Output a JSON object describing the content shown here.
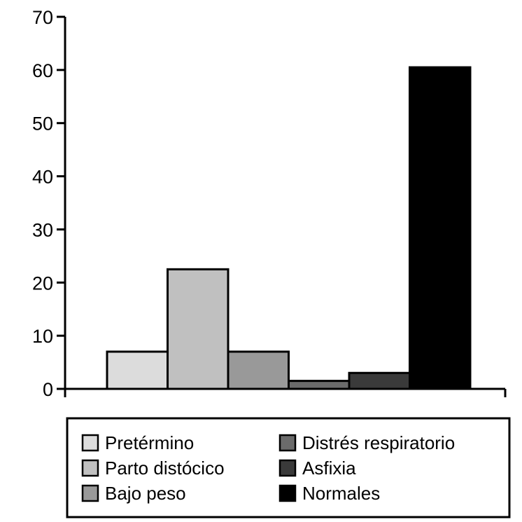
{
  "chart_data": {
    "type": "bar",
    "title": "",
    "xlabel": "",
    "ylabel": "",
    "ylim": [
      0,
      70
    ],
    "yticks": [
      "0",
      "10",
      "20",
      "30",
      "40",
      "50",
      "60",
      "70"
    ],
    "grid": false,
    "legend_position": "bottom",
    "series": [
      {
        "name": "Pretérmino",
        "value": 7,
        "color": "#dcdcdc"
      },
      {
        "name": "Parto distócico",
        "value": 22.5,
        "color": "#c0c0c0"
      },
      {
        "name": "Bajo peso",
        "value": 7,
        "color": "#999999"
      },
      {
        "name": "Distrés respiratorio",
        "value": 1.5,
        "color": "#6b6b6b"
      },
      {
        "name": "Asfixia",
        "value": 3,
        "color": "#3a3a3a"
      },
      {
        "name": "Normales",
        "value": 60.5,
        "color": "#000000"
      }
    ]
  }
}
